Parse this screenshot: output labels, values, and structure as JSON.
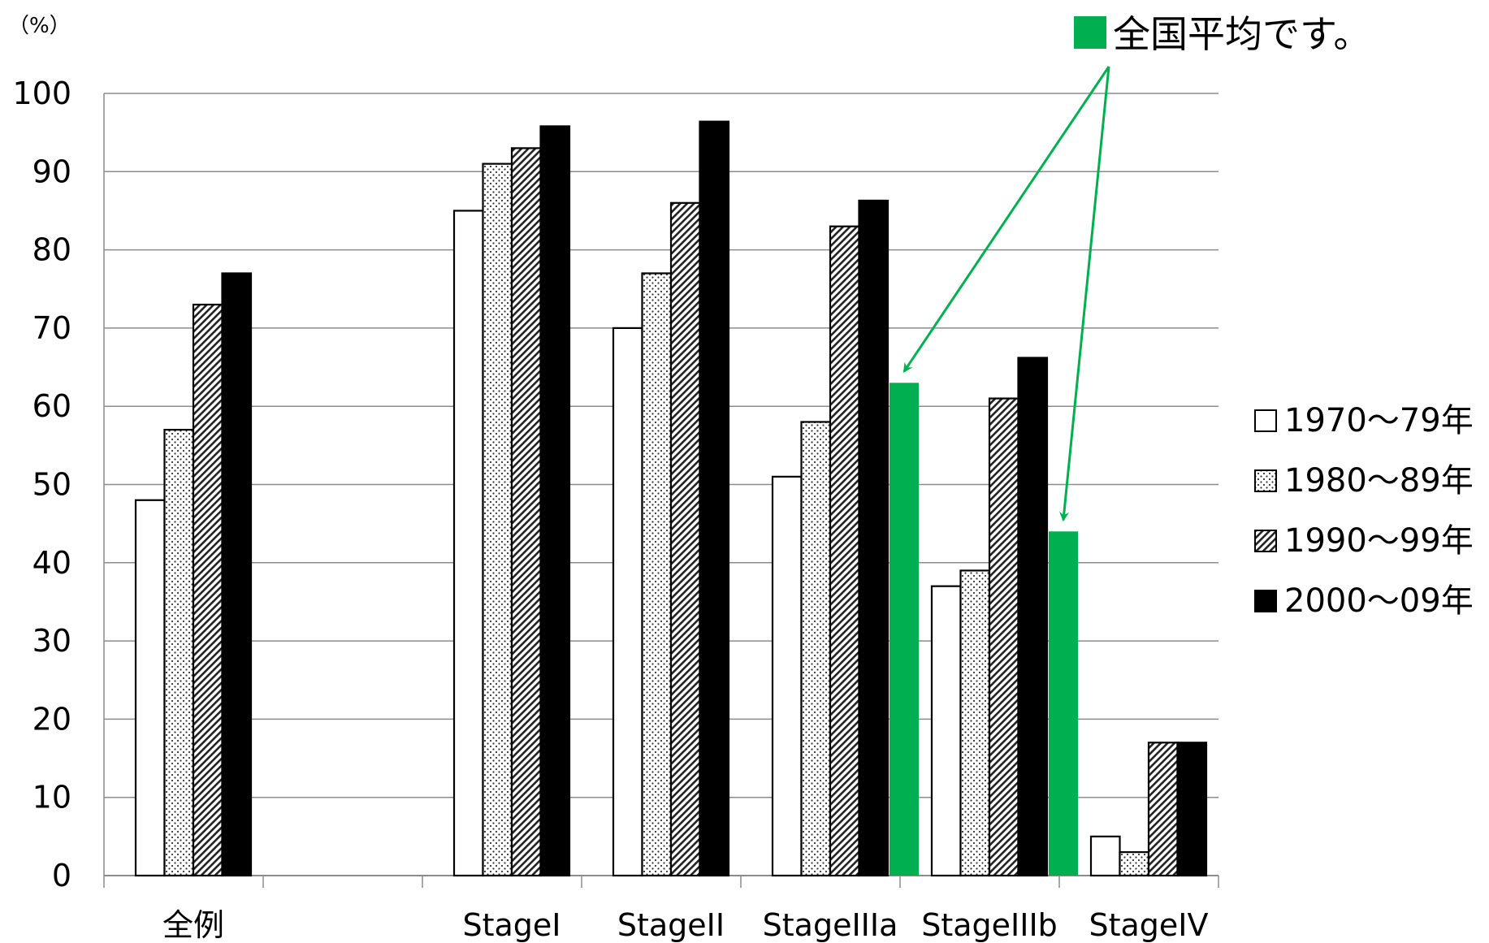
{
  "chart_data": {
    "type": "bar",
    "unit_label": "（%）",
    "ylim": [
      0,
      100
    ],
    "yticks": [
      "0",
      "10",
      "20",
      "30",
      "40",
      "50",
      "60",
      "70",
      "80",
      "90",
      "100"
    ],
    "grid": true,
    "legend_position": "right",
    "categories": [
      "全例",
      "",
      "StageI",
      "StageII",
      "StageIIIa",
      "StageIIIb",
      "StageIV"
    ],
    "series": [
      {
        "name": "1970〜79年",
        "pattern": "white",
        "values": [
          48,
          null,
          85,
          70,
          51,
          37,
          5
        ]
      },
      {
        "name": "1980〜89年",
        "pattern": "dots",
        "values": [
          57,
          null,
          91,
          77,
          58,
          39,
          3
        ]
      },
      {
        "name": "1990〜99年",
        "pattern": "hatch",
        "values": [
          73,
          null,
          93,
          86,
          83,
          61,
          17
        ]
      },
      {
        "name": "2000〜09年",
        "pattern": "black",
        "values": [
          77,
          null,
          95.8,
          96.4,
          86.3,
          66.2,
          17
        ]
      }
    ],
    "national_average": {
      "label": "全国平均です。",
      "color": "#00b050",
      "values": [
        null,
        null,
        null,
        null,
        63,
        44,
        null
      ]
    }
  }
}
